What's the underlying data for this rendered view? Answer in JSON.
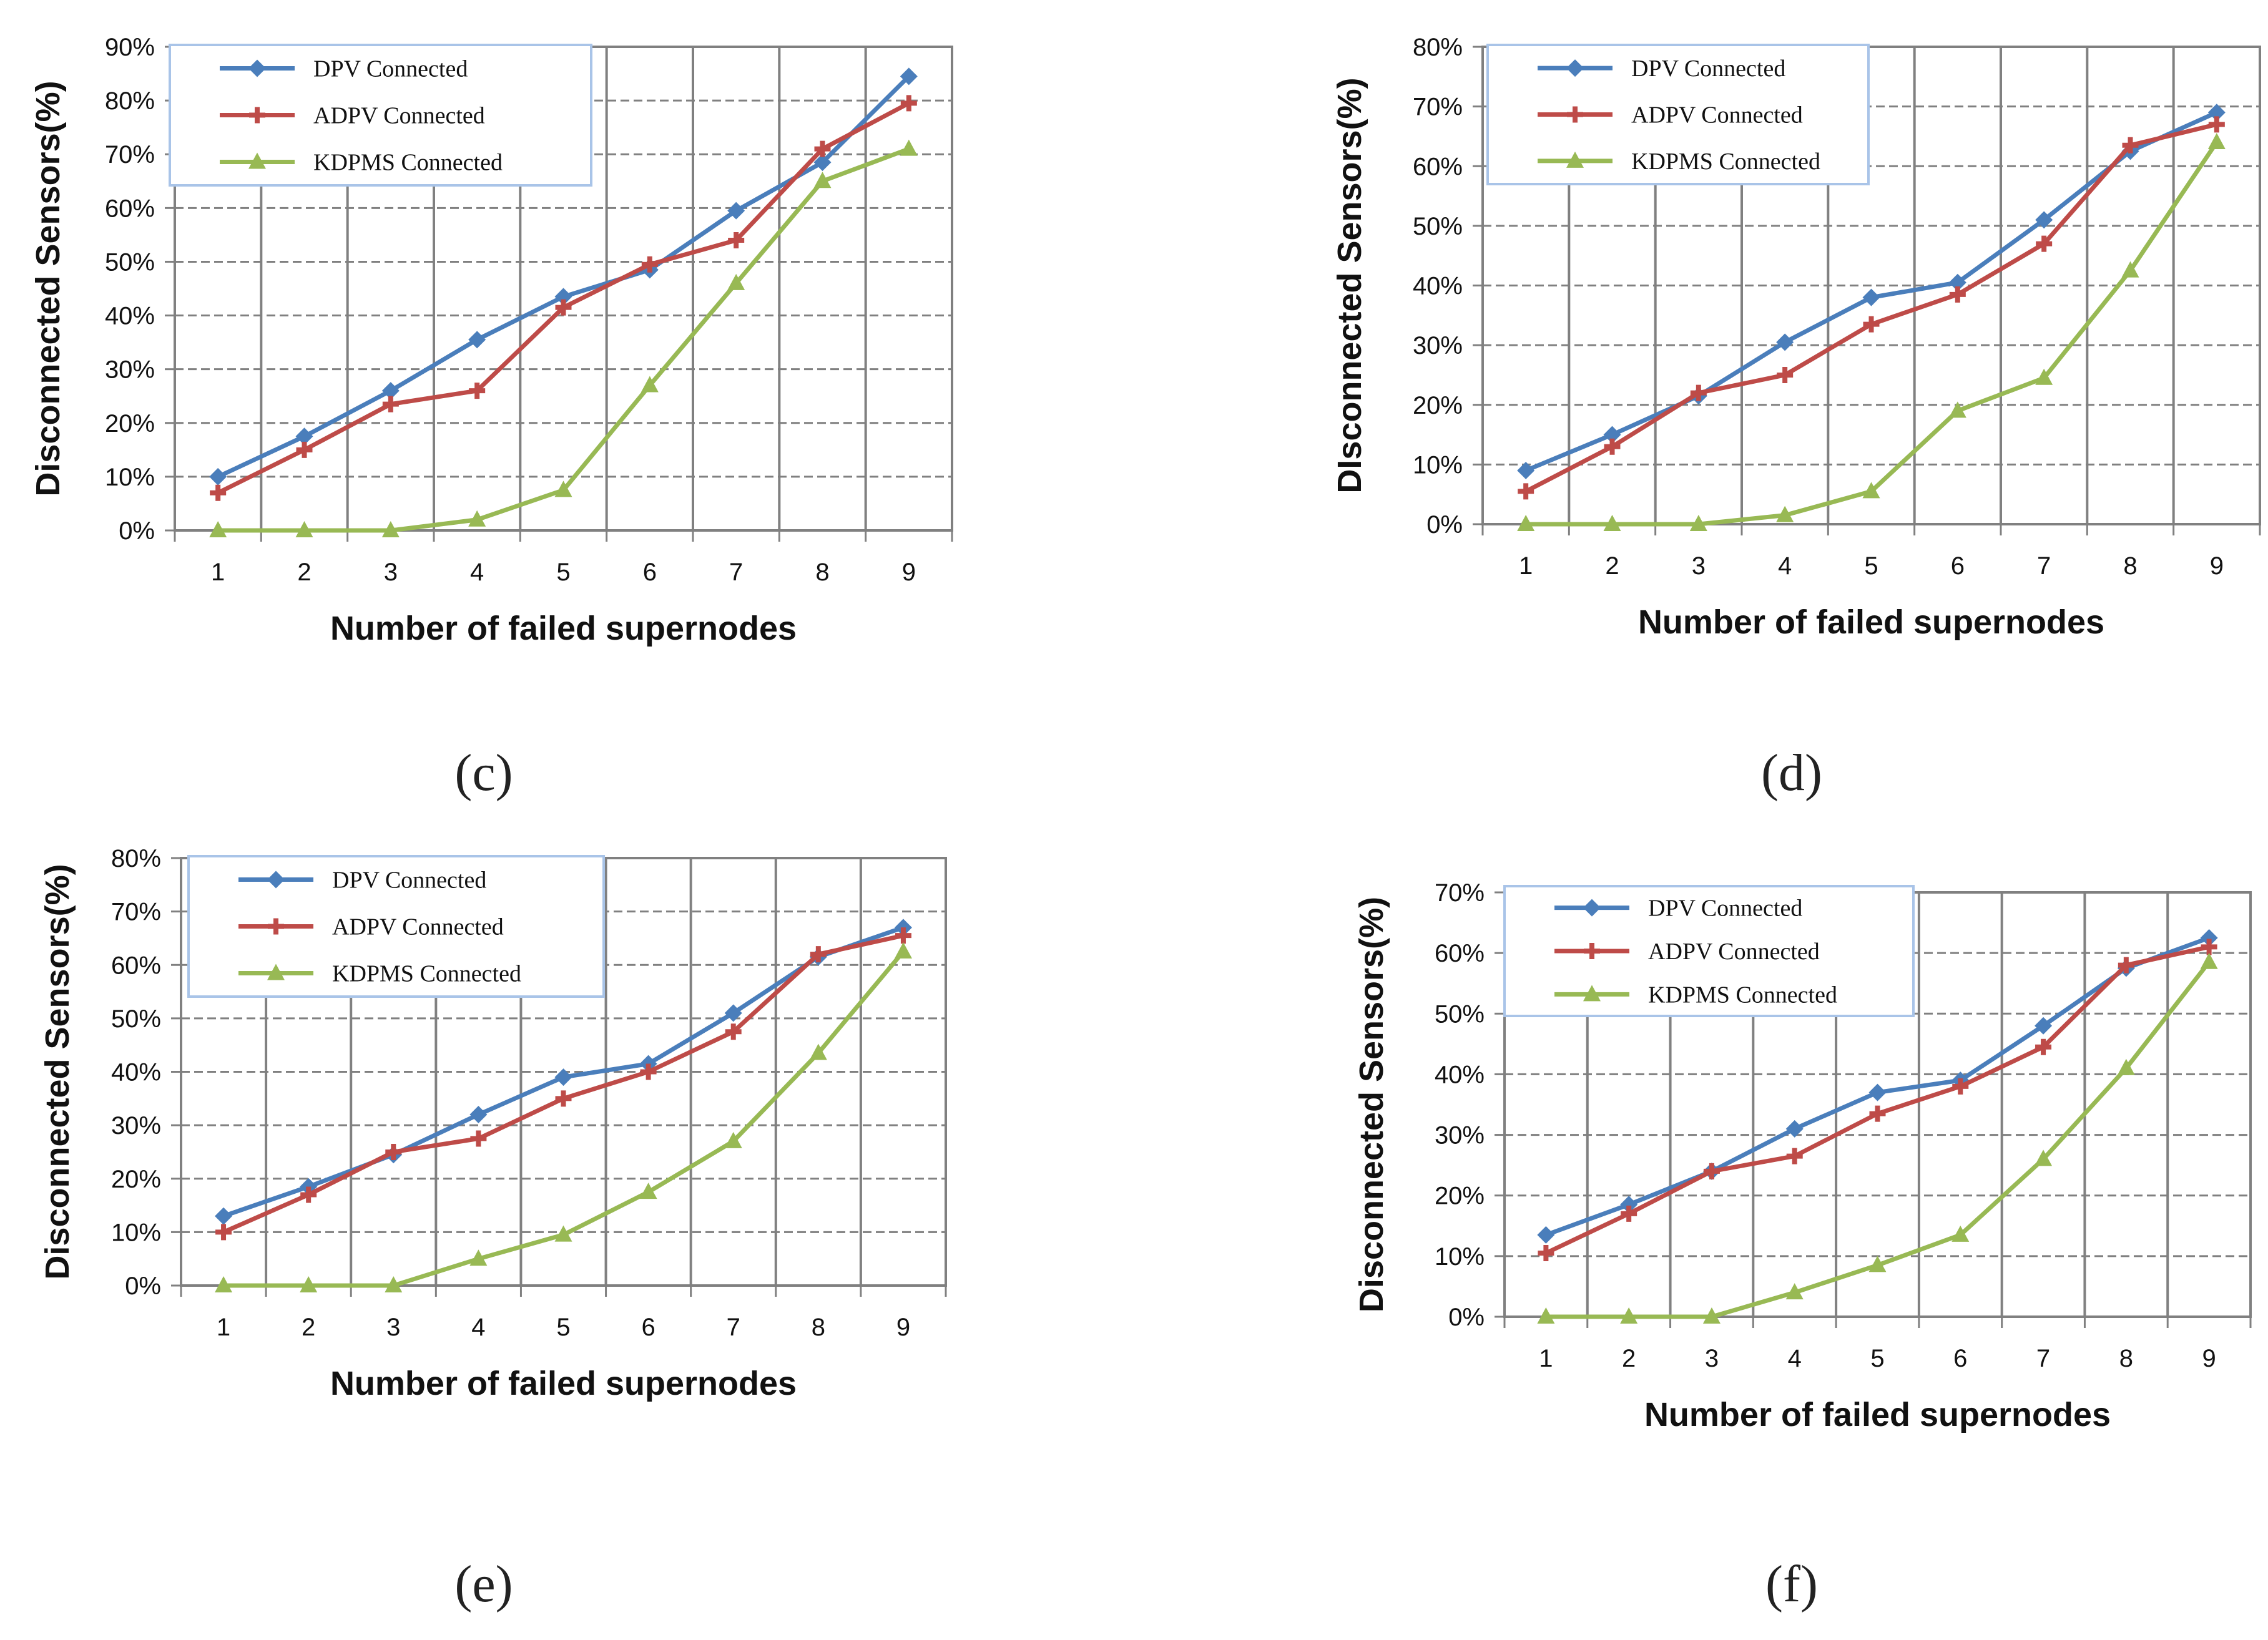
{
  "colors": {
    "dpv": "#4a7ebb",
    "adpv": "#be4b48",
    "kdpms": "#98b954",
    "grid": "#808080",
    "legend_border": "#a9c4e8"
  },
  "chart_data": [
    {
      "panel": "c",
      "type": "line",
      "caption": "(c)",
      "xlabel": "Number of failed supernodes",
      "ylabel": "Disconnected Sensors(%)",
      "categories": [
        "1",
        "2",
        "3",
        "4",
        "5",
        "6",
        "7",
        "8",
        "9"
      ],
      "ylim": [
        0,
        90
      ],
      "yticks": [
        "0%",
        "10%",
        "20%",
        "30%",
        "40%",
        "50%",
        "60%",
        "70%",
        "80%",
        "90%"
      ],
      "series": [
        {
          "name": "DPV Connected",
          "marker": "diamond",
          "values": [
            10,
            17.5,
            26,
            35.5,
            43.5,
            48.5,
            59.5,
            68.5,
            84.5
          ]
        },
        {
          "name": "ADPV Connected",
          "marker": "plus",
          "values": [
            7,
            15,
            23.5,
            26,
            41.5,
            49.5,
            54,
            71,
            79.5
          ]
        },
        {
          "name": "KDPMS Connected",
          "marker": "triangle",
          "values": [
            0,
            0,
            0,
            2,
            7.5,
            27,
            46,
            65,
            71
          ]
        }
      ]
    },
    {
      "panel": "d",
      "type": "line",
      "caption": "(d)",
      "xlabel": "Number of failed supernodes",
      "ylabel": "DIsconnected Sensors(%)",
      "categories": [
        "1",
        "2",
        "3",
        "4",
        "5",
        "6",
        "7",
        "8",
        "9"
      ],
      "ylim": [
        0,
        80
      ],
      "yticks": [
        "0%",
        "10%",
        "20%",
        "30%",
        "40%",
        "50%",
        "60%",
        "70%",
        "80%"
      ],
      "series": [
        {
          "name": "DPV Connected",
          "marker": "diamond",
          "values": [
            9,
            15,
            21.5,
            30.5,
            38,
            40.5,
            51,
            62.5,
            69
          ]
        },
        {
          "name": "ADPV Connected",
          "marker": "plus",
          "values": [
            5.5,
            13,
            22,
            25,
            33.5,
            38.5,
            47,
            63.5,
            67
          ]
        },
        {
          "name": "KDPMS Connected",
          "marker": "triangle",
          "values": [
            0,
            0,
            0,
            1.5,
            5.5,
            19,
            24.5,
            42.5,
            64
          ]
        }
      ]
    },
    {
      "panel": "e",
      "type": "line",
      "caption": "(e)",
      "xlabel": "Number of failed supernodes",
      "ylabel": "Disconnected Sensors(%)",
      "categories": [
        "1",
        "2",
        "3",
        "4",
        "5",
        "6",
        "7",
        "8",
        "9"
      ],
      "ylim": [
        0,
        80
      ],
      "yticks": [
        "0%",
        "10%",
        "20%",
        "30%",
        "40%",
        "50%",
        "60%",
        "70%",
        "80%"
      ],
      "series": [
        {
          "name": "DPV Connected",
          "marker": "diamond",
          "values": [
            13,
            18.5,
            24.5,
            32,
            39,
            41.5,
            51,
            61.5,
            67
          ]
        },
        {
          "name": "ADPV Connected",
          "marker": "plus",
          "values": [
            10,
            17,
            25,
            27.5,
            35,
            40,
            47.5,
            62,
            65.5
          ]
        },
        {
          "name": "KDPMS Connected",
          "marker": "triangle",
          "values": [
            0,
            0,
            0,
            5,
            9.5,
            17.5,
            27,
            43.5,
            62.5
          ]
        }
      ]
    },
    {
      "panel": "f",
      "type": "line",
      "caption": "(f)",
      "xlabel": "Number of failed supernodes",
      "ylabel": "Disconnected Sensors(%)",
      "categories": [
        "1",
        "2",
        "3",
        "4",
        "5",
        "6",
        "7",
        "8",
        "9"
      ],
      "ylim": [
        0,
        70
      ],
      "yticks": [
        "0%",
        "10%",
        "20%",
        "30%",
        "40%",
        "50%",
        "60%",
        "70%"
      ],
      "series": [
        {
          "name": "DPV Connected",
          "marker": "diamond",
          "values": [
            13.5,
            18.5,
            24,
            31,
            37,
            39,
            48,
            57.5,
            62.5
          ]
        },
        {
          "name": "ADPV Connected",
          "marker": "plus",
          "values": [
            10.5,
            17,
            24,
            26.5,
            33.5,
            38,
            44.5,
            58,
            61
          ]
        },
        {
          "name": "KDPMS Connected",
          "marker": "triangle",
          "values": [
            0,
            0,
            0,
            4,
            8.5,
            13.5,
            26,
            41,
            58.5
          ]
        }
      ]
    }
  ]
}
